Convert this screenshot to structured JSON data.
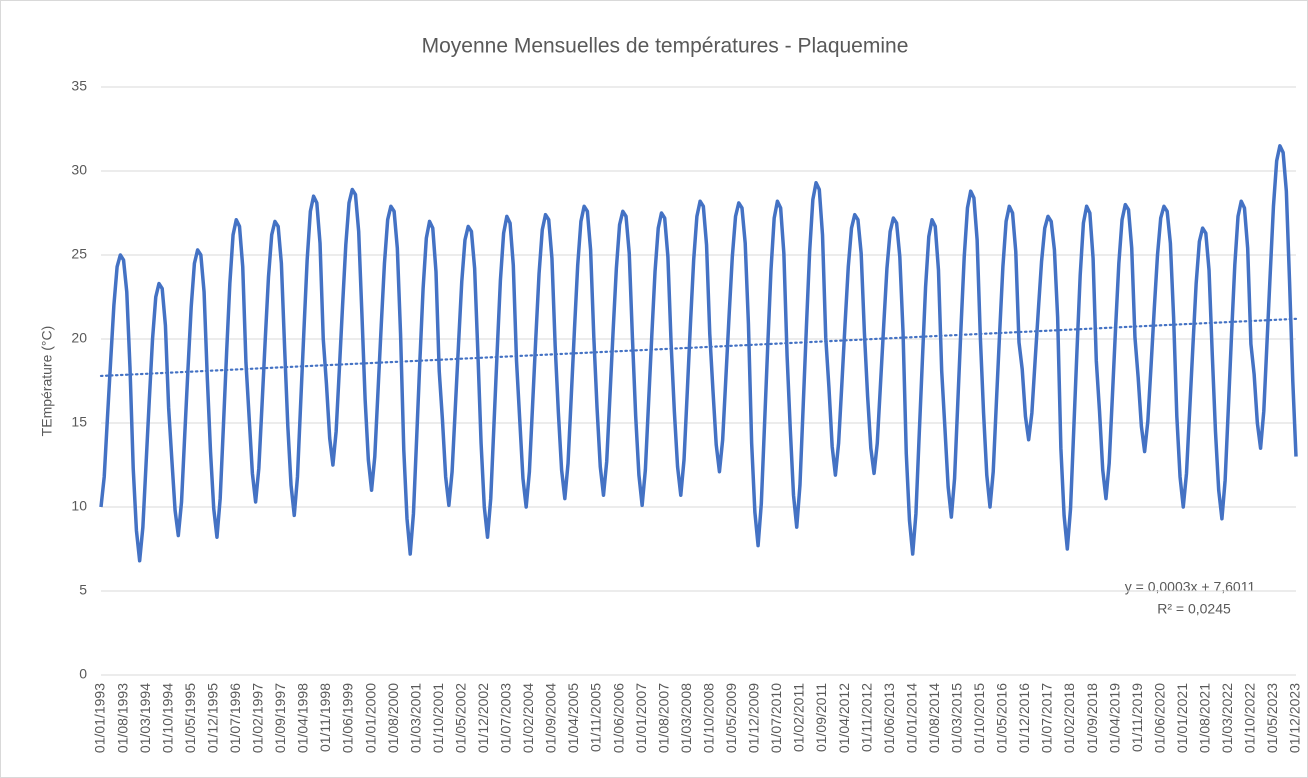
{
  "chart_data": {
    "type": "line",
    "title": "Moyenne Mensuelles de températures - Plaquemine",
    "y_label": "TEmpérature (°C)",
    "annotations": [
      "y = 0,0003x + 7,6011",
      "R² = 0,0245"
    ],
    "ylim": [
      0,
      35
    ],
    "yticks": [
      0,
      5,
      10,
      15,
      20,
      25,
      30,
      35
    ],
    "grid": true,
    "categories": [
      "01/01/1993",
      null,
      null,
      null,
      null,
      null,
      null,
      "01/08/1993",
      null,
      null,
      null,
      null,
      null,
      null,
      "01/03/1994",
      null,
      null,
      null,
      null,
      null,
      null,
      "01/10/1994",
      null,
      null,
      null,
      null,
      null,
      null,
      "01/05/1995",
      null,
      null,
      null,
      null,
      null,
      null,
      "01/12/1995",
      null,
      null,
      null,
      null,
      null,
      null,
      "01/07/1996",
      null,
      null,
      null,
      null,
      null,
      null,
      "01/02/1997",
      null,
      null,
      null,
      null,
      null,
      null,
      "01/09/1997",
      null,
      null,
      null,
      null,
      null,
      null,
      "01/04/1998",
      null,
      null,
      null,
      null,
      null,
      null,
      "01/11/1998",
      null,
      null,
      null,
      null,
      null,
      null,
      "01/06/1999",
      null,
      null,
      null,
      null,
      null,
      null,
      "01/01/2000",
      null,
      null,
      null,
      null,
      null,
      null,
      "01/08/2000",
      null,
      null,
      null,
      null,
      null,
      null,
      "01/03/2001",
      null,
      null,
      null,
      null,
      null,
      null,
      "01/10/2001",
      null,
      null,
      null,
      null,
      null,
      null,
      "01/05/2002",
      null,
      null,
      null,
      null,
      null,
      null,
      "01/12/2002",
      null,
      null,
      null,
      null,
      null,
      null,
      "01/07/2003",
      null,
      null,
      null,
      null,
      null,
      null,
      "01/02/2004",
      null,
      null,
      null,
      null,
      null,
      null,
      "01/09/2004",
      null,
      null,
      null,
      null,
      null,
      null,
      "01/04/2005",
      null,
      null,
      null,
      null,
      null,
      null,
      "01/11/2005",
      null,
      null,
      null,
      null,
      null,
      null,
      "01/06/2006",
      null,
      null,
      null,
      null,
      null,
      null,
      "01/01/2007",
      null,
      null,
      null,
      null,
      null,
      null,
      "01/08/2007",
      null,
      null,
      null,
      null,
      null,
      null,
      "01/03/2008",
      null,
      null,
      null,
      null,
      null,
      null,
      "01/10/2008",
      null,
      null,
      null,
      null,
      null,
      null,
      "01/05/2009",
      null,
      null,
      null,
      null,
      null,
      null,
      "01/12/2009",
      null,
      null,
      null,
      null,
      null,
      null,
      "01/07/2010",
      null,
      null,
      null,
      null,
      null,
      null,
      "01/02/2011",
      null,
      null,
      null,
      null,
      null,
      null,
      "01/09/2011",
      null,
      null,
      null,
      null,
      null,
      null,
      "01/04/2012",
      null,
      null,
      null,
      null,
      null,
      null,
      "01/11/2012",
      null,
      null,
      null,
      null,
      null,
      null,
      "01/06/2013",
      null,
      null,
      null,
      null,
      null,
      null,
      "01/01/2014",
      null,
      null,
      null,
      null,
      null,
      null,
      "01/08/2014",
      null,
      null,
      null,
      null,
      null,
      null,
      "01/03/2015",
      null,
      null,
      null,
      null,
      null,
      null,
      "01/10/2015",
      null,
      null,
      null,
      null,
      null,
      null,
      "01/05/2016",
      null,
      null,
      null,
      null,
      null,
      null,
      "01/12/2016",
      null,
      null,
      null,
      null,
      null,
      null,
      "01/07/2017",
      null,
      null,
      null,
      null,
      null,
      null,
      "01/02/2018",
      null,
      null,
      null,
      null,
      null,
      null,
      "01/09/2018",
      null,
      null,
      null,
      null,
      null,
      null,
      "01/04/2019",
      null,
      null,
      null,
      null,
      null,
      null,
      "01/11/2019",
      null,
      null,
      null,
      null,
      null,
      null,
      "01/06/2020",
      null,
      null,
      null,
      null,
      null,
      null,
      "01/01/2021",
      null,
      null,
      null,
      null,
      null,
      null,
      "01/08/2021",
      null,
      null,
      null,
      null,
      null,
      null,
      "01/03/2022",
      null,
      null,
      null,
      null,
      null,
      null,
      "01/10/2022",
      null,
      null,
      null,
      null,
      null,
      null,
      "01/05/2023",
      null,
      null,
      null,
      null,
      null,
      null,
      "01/12/2023"
    ],
    "series": [
      {
        "color": "#4472c4",
        "values": [
          10,
          11.8,
          15.3,
          18.7,
          22,
          24.3,
          25,
          24.7,
          22.8,
          18.3,
          12.3,
          8.6,
          6.8,
          8.8,
          12.6,
          16.4,
          20,
          22.5,
          23.3,
          23,
          20.8,
          15.9,
          12.8,
          9.8,
          8.3,
          10.3,
          14.3,
          18.2,
          21.9,
          24.5,
          25.3,
          25,
          22.8,
          17.7,
          13.3,
          9.9,
          8.2,
          10.5,
          14.8,
          19.2,
          23.3,
          26.2,
          27.1,
          26.7,
          24.3,
          18.6,
          15.3,
          12,
          10.3,
          12.3,
          16.1,
          20,
          23.7,
          26.2,
          27,
          26.7,
          24.5,
          19.5,
          14.8,
          11.3,
          9.5,
          11.8,
          16.2,
          20.5,
          24.7,
          27.6,
          28.5,
          28.1,
          25.7,
          20,
          17.3,
          14.1,
          12.5,
          14.5,
          18.2,
          22,
          25.6,
          28.1,
          28.9,
          28.6,
          26.4,
          21.5,
          16.4,
          12.8,
          11,
          13,
          16.9,
          20.8,
          24.5,
          27.1,
          27.9,
          27.6,
          25.4,
          20.3,
          13.4,
          9.3,
          7.2,
          9.6,
          14.1,
          18.7,
          23,
          26,
          27,
          26.6,
          24,
          18.1,
          15.2,
          11.8,
          10.1,
          12.1,
          15.9,
          19.7,
          23.4,
          25.9,
          26.7,
          26.4,
          24.2,
          19.2,
          13.8,
          10,
          8.2,
          10.5,
          14.9,
          19.3,
          23.5,
          26.3,
          27.3,
          26.9,
          24.4,
          18.7,
          15.2,
          11.7,
          10,
          12.1,
          16.1,
          20.1,
          23.9,
          26.5,
          27.4,
          27.1,
          24.8,
          19.6,
          15.6,
          12.2,
          10.5,
          12.6,
          16.6,
          20.6,
          24.4,
          27,
          27.9,
          27.6,
          25.3,
          20.1,
          15.9,
          12.4,
          10.7,
          12.7,
          16.6,
          20.5,
          24.2,
          26.8,
          27.6,
          27.3,
          25.1,
          20,
          15.4,
          11.9,
          10.1,
          12.2,
          16.2,
          20.2,
          24,
          26.6,
          27.5,
          27.2,
          24.9,
          19.7,
          15.7,
          12.4,
          10.7,
          12.8,
          16.8,
          20.9,
          24.7,
          27.3,
          28.2,
          27.9,
          25.6,
          20.3,
          16.9,
          13.7,
          12.1,
          14,
          17.7,
          21.4,
          24.9,
          27.3,
          28.1,
          27.8,
          25.7,
          20.9,
          13.8,
          9.7,
          7.7,
          10.2,
          14.9,
          19.6,
          24.1,
          27.2,
          28.2,
          27.8,
          25.1,
          19,
          14.6,
          10.7,
          8.8,
          11.3,
          16,
          20.7,
          25.2,
          28.3,
          29.3,
          28.9,
          26.2,
          20.1,
          17.1,
          13.6,
          11.9,
          13.8,
          17.3,
          20.9,
          24.3,
          26.6,
          27.4,
          27.1,
          25.1,
          20.4,
          16.6,
          13.5,
          12,
          13.8,
          17.3,
          20.8,
          24.2,
          26.4,
          27.2,
          26.9,
          24.9,
          20.4,
          13.2,
          9.2,
          7.2,
          9.6,
          14.2,
          18.7,
          23.1,
          26.1,
          27.1,
          26.7,
          24.1,
          18.1,
          14.7,
          11.2,
          9.4,
          11.7,
          16.2,
          20.7,
          24.9,
          27.8,
          28.8,
          28.4,
          25.9,
          20.1,
          15.6,
          11.9,
          10,
          12.1,
          16.3,
          20.4,
          24.3,
          27,
          27.9,
          27.5,
          25.2,
          19.8,
          18.2,
          15.4,
          14,
          15.6,
          18.7,
          21.7,
          24.6,
          26.6,
          27.3,
          27,
          25.3,
          21.3,
          13.5,
          9.5,
          7.5,
          9.9,
          14.6,
          19.3,
          23.8,
          26.9,
          27.9,
          27.5,
          24.8,
          18.7,
          15.7,
          12.2,
          10.5,
          12.6,
          16.6,
          20.7,
          24.5,
          27.1,
          28,
          27.7,
          25.4,
          20.1,
          17.7,
          14.8,
          13.3,
          15.1,
          18.4,
          21.8,
          25,
          27.2,
          27.9,
          27.6,
          25.7,
          21.3,
          15.4,
          11.8,
          10,
          12,
          15.8,
          19.6,
          23.3,
          25.8,
          26.6,
          26.3,
          24.1,
          19.1,
          14.5,
          11,
          9.3,
          11.6,
          15.9,
          20.3,
          24.4,
          27.3,
          28.2,
          27.8,
          25.4,
          19.7,
          17.9,
          15,
          13.5,
          15.7,
          19.8,
          23.9,
          27.9,
          30.6,
          31.5,
          31.1,
          28.8,
          23.4,
          17.5,
          13
        ]
      }
    ],
    "trendline": {
      "color": "#4472c4",
      "values": [
        17.8,
        21.2
      ]
    }
  }
}
